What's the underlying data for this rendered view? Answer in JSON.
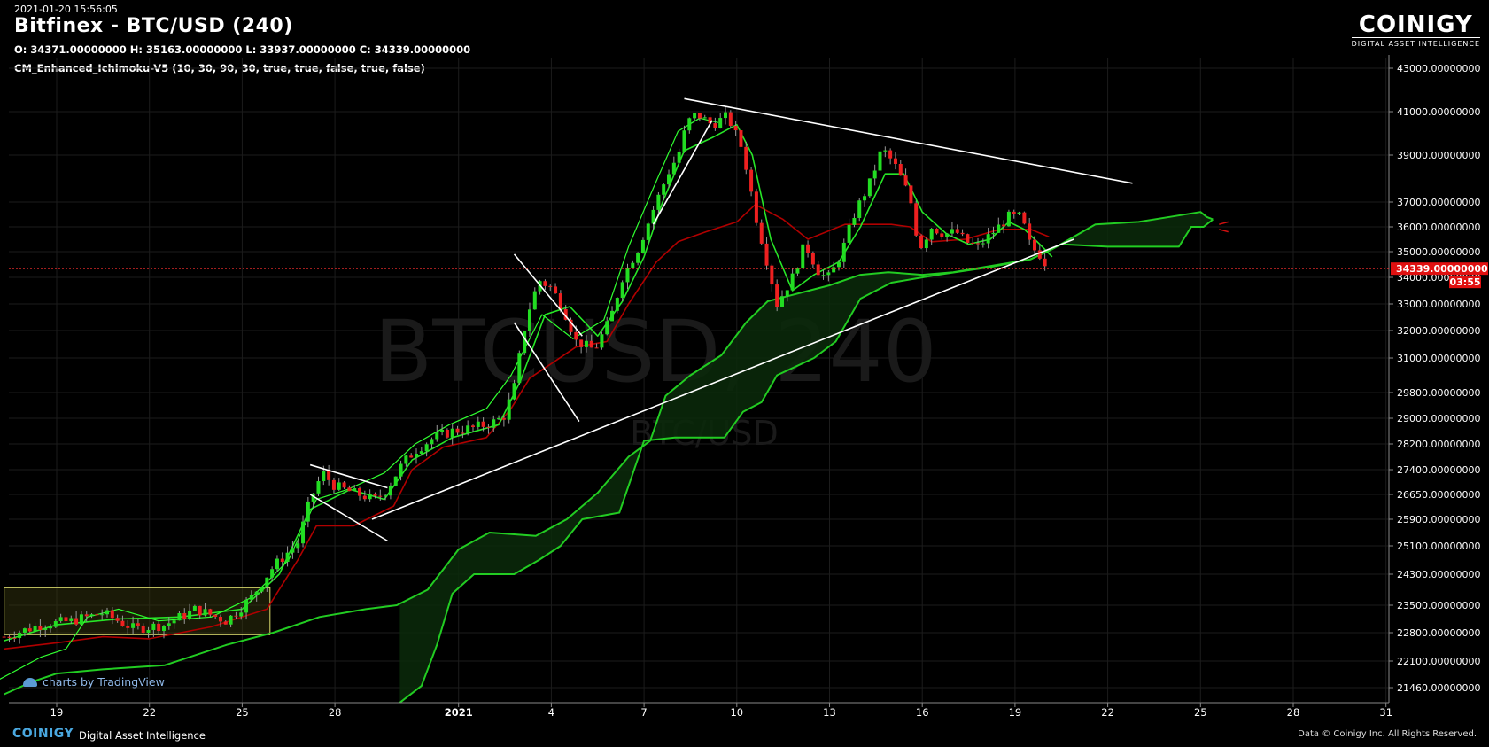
{
  "header": {
    "timestamp": "2021-01-20 15:56:05",
    "title": "Bitfinex - BTC/USD (240)",
    "ohlc": "O: 34371.00000000 H: 35163.00000000 L: 33937.00000000 C: 34339.00000000",
    "indicator": "CM_Enhanced_Ichimoku-V5 (10, 30, 90, 30, true, true, false, true, false)"
  },
  "logo": {
    "name": "COINIGY",
    "tagline": "DIGITAL ASSET INTELLIGENCE"
  },
  "watermark": {
    "main": "BTCUSD, 240",
    "sub": "BTC/USD"
  },
  "tradingview": "charts by TradingView",
  "footer": {
    "brand": "COINIGY",
    "tagline": "Digital Asset Intelligence",
    "copyright": "Data © Coinigy Inc.  All Rights Reserved."
  },
  "chart_data": {
    "type": "line",
    "title": "Bitfinex - BTC/USD (240)",
    "y_ticks": [
      {
        "v": 43000,
        "label": "43000.00000000"
      },
      {
        "v": 41000,
        "label": "41000.00000000"
      },
      {
        "v": 39000,
        "label": "39000.00000000"
      },
      {
        "v": 37000,
        "label": "37000.00000000"
      },
      {
        "v": 36000,
        "label": "36000.00000000"
      },
      {
        "v": 35000,
        "label": "35000.00000000"
      },
      {
        "v": 34000,
        "label": "34000.00000000"
      },
      {
        "v": 33000,
        "label": "33000.00000000"
      },
      {
        "v": 32000,
        "label": "32000.00000000"
      },
      {
        "v": 31000,
        "label": "31000.00000000"
      },
      {
        "v": 29800,
        "label": "29800.00000000"
      },
      {
        "v": 29000,
        "label": "29000.00000000"
      },
      {
        "v": 28200,
        "label": "28200.00000000"
      },
      {
        "v": 27400,
        "label": "27400.00000000"
      },
      {
        "v": 26650,
        "label": "26650.00000000"
      },
      {
        "v": 25900,
        "label": "25900.00000000"
      },
      {
        "v": 25100,
        "label": "25100.00000000"
      },
      {
        "v": 24300,
        "label": "24300.00000000"
      },
      {
        "v": 23500,
        "label": "23500.00000000"
      },
      {
        "v": 22800,
        "label": "22800.00000000"
      },
      {
        "v": 22100,
        "label": "22100.00000000"
      },
      {
        "v": 21460,
        "label": "21460.00000000"
      }
    ],
    "x_ticks": [
      {
        "day": 19,
        "label": "19"
      },
      {
        "day": 22,
        "label": "22"
      },
      {
        "day": 25,
        "label": "25"
      },
      {
        "day": 28,
        "label": "28"
      },
      {
        "day": 32,
        "label": "2021",
        "bold": true
      },
      {
        "day": 35,
        "label": "4"
      },
      {
        "day": 38,
        "label": "7"
      },
      {
        "day": 41,
        "label": "10"
      },
      {
        "day": 44,
        "label": "13"
      },
      {
        "day": 47,
        "label": "16"
      },
      {
        "day": 50,
        "label": "19"
      },
      {
        "day": 53,
        "label": "22"
      },
      {
        "day": 56,
        "label": "25"
      },
      {
        "day": 59,
        "label": "28"
      },
      {
        "day": 62,
        "label": "31"
      }
    ],
    "last_price": {
      "value": 34339,
      "label": "34339.00000000",
      "countdown": "03:55"
    },
    "price_path": [
      [
        17.3,
        22700
      ],
      [
        18.5,
        23000
      ],
      [
        19.5,
        23100
      ],
      [
        20.5,
        23300
      ],
      [
        21.5,
        22900
      ],
      [
        22.5,
        23000
      ],
      [
        23.5,
        23400
      ],
      [
        24.5,
        23100
      ],
      [
        25.3,
        23700
      ],
      [
        26,
        24500
      ],
      [
        26.8,
        25200
      ],
      [
        27.2,
        26500
      ],
      [
        27.6,
        27300
      ],
      [
        28,
        26900
      ],
      [
        28.6,
        26700
      ],
      [
        29.3,
        26500
      ],
      [
        29.6,
        26700
      ],
      [
        30.2,
        27600
      ],
      [
        30.6,
        28000
      ],
      [
        31.2,
        28400
      ],
      [
        31.8,
        28600
      ],
      [
        32.5,
        28700
      ],
      [
        33.2,
        28900
      ],
      [
        33.5,
        29100
      ],
      [
        33.8,
        30000
      ],
      [
        34.2,
        32500
      ],
      [
        34.6,
        33900
      ],
      [
        35,
        33600
      ],
      [
        35.4,
        32800
      ],
      [
        35.8,
        31600
      ],
      [
        36.4,
        31300
      ],
      [
        36.9,
        32400
      ],
      [
        37.3,
        34000
      ],
      [
        37.8,
        35100
      ],
      [
        38.3,
        36700
      ],
      [
        38.8,
        38300
      ],
      [
        39.1,
        39000
      ],
      [
        39.4,
        40500
      ],
      [
        39.7,
        40900
      ],
      [
        40.2,
        40400
      ],
      [
        40.7,
        40800
      ],
      [
        41.2,
        39200
      ],
      [
        41.6,
        36500
      ],
      [
        42,
        34500
      ],
      [
        42.3,
        33000
      ],
      [
        42.8,
        34000
      ],
      [
        43.2,
        35300
      ],
      [
        43.7,
        34100
      ],
      [
        44,
        34000
      ],
      [
        44.4,
        35000
      ],
      [
        44.8,
        36500
      ],
      [
        45.3,
        37800
      ],
      [
        45.7,
        39300
      ],
      [
        46.1,
        38600
      ],
      [
        46.6,
        37200
      ],
      [
        46.9,
        35100
      ],
      [
        47.3,
        36000
      ],
      [
        47.7,
        35700
      ],
      [
        48.1,
        35800
      ],
      [
        48.4,
        35400
      ],
      [
        48.8,
        35200
      ],
      [
        49.3,
        35800
      ],
      [
        49.8,
        36400
      ],
      [
        50.2,
        36400
      ],
      [
        50.5,
        35200
      ],
      [
        50.8,
        34900
      ],
      [
        51.1,
        34339
      ]
    ],
    "tenkan": [
      [
        17.3,
        22600
      ],
      [
        19,
        23000
      ],
      [
        21,
        23150
      ],
      [
        23,
        23200
      ],
      [
        25,
        23400
      ],
      [
        26.2,
        24300
      ],
      [
        27.2,
        26200
      ],
      [
        28.5,
        26800
      ],
      [
        29.6,
        26500
      ],
      [
        30.5,
        27700
      ],
      [
        31.8,
        28400
      ],
      [
        33.3,
        28800
      ],
      [
        34,
        30200
      ],
      [
        34.8,
        32600
      ],
      [
        35.6,
        32900
      ],
      [
        36.5,
        31800
      ],
      [
        37.3,
        33100
      ],
      [
        38,
        34800
      ],
      [
        38.6,
        37000
      ],
      [
        39.3,
        39200
      ],
      [
        40.2,
        39800
      ],
      [
        41,
        40400
      ],
      [
        41.5,
        39000
      ],
      [
        42.1,
        35500
      ],
      [
        42.8,
        33500
      ],
      [
        43.5,
        34100
      ],
      [
        44.3,
        34600
      ],
      [
        45,
        36000
      ],
      [
        45.8,
        38200
      ],
      [
        46.4,
        38200
      ],
      [
        47,
        36600
      ],
      [
        47.8,
        35700
      ],
      [
        48.5,
        35300
      ],
      [
        49.2,
        35500
      ],
      [
        49.8,
        36200
      ],
      [
        50.3,
        35900
      ],
      [
        50.8,
        35300
      ],
      [
        51.2,
        34800
      ]
    ],
    "kijun": [
      [
        17.3,
        22400
      ],
      [
        19,
        22550
      ],
      [
        20.5,
        22700
      ],
      [
        22,
        22650
      ],
      [
        24,
        22950
      ],
      [
        25.8,
        23400
      ],
      [
        26.8,
        24700
      ],
      [
        27.4,
        25700
      ],
      [
        28.6,
        25700
      ],
      [
        29.9,
        26300
      ],
      [
        30.5,
        27400
      ],
      [
        31.5,
        28100
      ],
      [
        32.9,
        28400
      ],
      [
        33.7,
        29300
      ],
      [
        34.3,
        30300
      ],
      [
        35.8,
        31400
      ],
      [
        36.8,
        31600
      ],
      [
        37.5,
        33000
      ],
      [
        38.4,
        34600
      ],
      [
        39.1,
        35400
      ],
      [
        40,
        35800
      ],
      [
        41,
        36200
      ],
      [
        41.6,
        36900
      ],
      [
        42.5,
        36300
      ],
      [
        43.3,
        35500
      ],
      [
        44.5,
        36100
      ],
      [
        46,
        36100
      ],
      [
        46.6,
        36000
      ],
      [
        47.3,
        35400
      ],
      [
        48.4,
        35500
      ],
      [
        49.5,
        35900
      ],
      [
        50.5,
        35900
      ],
      [
        51.1,
        35600
      ]
    ],
    "span_a": [
      [
        17.3,
        21300
      ],
      [
        18.2,
        21600
      ],
      [
        19,
        21800
      ],
      [
        20.5,
        21900
      ],
      [
        22.5,
        22000
      ],
      [
        24.5,
        22500
      ],
      [
        26,
        22800
      ],
      [
        27.5,
        23200
      ],
      [
        29,
        23400
      ],
      [
        30,
        23500
      ],
      [
        31,
        23900
      ],
      [
        32,
        25000
      ],
      [
        33,
        25500
      ],
      [
        34.5,
        25400
      ],
      [
        35.5,
        25900
      ],
      [
        36.5,
        26700
      ],
      [
        37.5,
        27800
      ],
      [
        38.2,
        28300
      ],
      [
        38.7,
        29700
      ],
      [
        39.5,
        30400
      ],
      [
        40.5,
        31100
      ],
      [
        41.3,
        32300
      ],
      [
        42,
        33100
      ],
      [
        43,
        33400
      ],
      [
        44,
        33700
      ],
      [
        45,
        34100
      ],
      [
        45.9,
        34200
      ],
      [
        47,
        34100
      ],
      [
        48,
        34200
      ],
      [
        49.5,
        34500
      ],
      [
        50.5,
        34700
      ],
      [
        51.5,
        35300
      ],
      [
        53,
        35200
      ],
      [
        55.3,
        35200
      ],
      [
        55.7,
        36000
      ],
      [
        56.1,
        36000
      ],
      [
        56.4,
        36300
      ]
    ],
    "span_b": [
      [
        30.1,
        21100
      ],
      [
        30.8,
        21500
      ],
      [
        31.3,
        22500
      ],
      [
        31.8,
        23800
      ],
      [
        32.5,
        24300
      ],
      [
        33.8,
        24300
      ],
      [
        34.6,
        24700
      ],
      [
        35.3,
        25100
      ],
      [
        36,
        25900
      ],
      [
        37.2,
        26100
      ],
      [
        38,
        28300
      ],
      [
        39,
        28400
      ],
      [
        40.6,
        28400
      ],
      [
        41.2,
        29200
      ],
      [
        41.8,
        29500
      ],
      [
        42.3,
        30400
      ],
      [
        43.5,
        31000
      ],
      [
        44.2,
        31600
      ],
      [
        45,
        33200
      ],
      [
        46,
        33800
      ],
      [
        47.5,
        34100
      ],
      [
        49.2,
        34400
      ],
      [
        50.5,
        34700
      ],
      [
        51.2,
        35100
      ],
      [
        52.6,
        36100
      ],
      [
        54,
        36200
      ],
      [
        55,
        36400
      ],
      [
        56,
        36600
      ],
      [
        56.2,
        36400
      ],
      [
        56.4,
        36300
      ]
    ],
    "chikou": [
      [
        17,
        21600
      ],
      [
        18.5,
        22200
      ],
      [
        19.3,
        22400
      ],
      [
        20,
        23200
      ],
      [
        21,
        23400
      ],
      [
        22.3,
        23100
      ],
      [
        24,
        23200
      ],
      [
        25.3,
        23700
      ],
      [
        26.5,
        24700
      ],
      [
        27.4,
        26500
      ],
      [
        28.4,
        26800
      ],
      [
        29.6,
        27300
      ],
      [
        30.6,
        28200
      ],
      [
        31.7,
        28800
      ],
      [
        32.9,
        29300
      ],
      [
        33.7,
        30400
      ],
      [
        34.7,
        32600
      ],
      [
        35.7,
        31700
      ],
      [
        36.7,
        32400
      ],
      [
        37.5,
        35200
      ],
      [
        38.3,
        37600
      ],
      [
        39.1,
        40100
      ],
      [
        39.8,
        40700
      ],
      [
        40.4,
        40500
      ]
    ],
    "trendlines": [
      {
        "from": [
          27.2,
          27550
        ],
        "to": [
          29.7,
          26850
        ]
      },
      {
        "from": [
          27.2,
          26650
        ],
        "to": [
          29.7,
          25250
        ]
      },
      {
        "from": [
          29.2,
          25900
        ],
        "to": [
          51.9,
          35500
        ]
      },
      {
        "from": [
          33.8,
          34900
        ],
        "to": [
          36.0,
          31800
        ]
      },
      {
        "from": [
          33.8,
          32300
        ],
        "to": [
          35.9,
          28900
        ]
      },
      {
        "from": [
          38.3,
          36100
        ],
        "to": [
          40.2,
          40600
        ]
      },
      {
        "from": [
          39.3,
          41600
        ],
        "to": [
          53.8,
          37800
        ]
      }
    ],
    "range_box": {
      "x0": 17.3,
      "x1": 25.9,
      "y0": 22750,
      "y1": 23950
    }
  }
}
